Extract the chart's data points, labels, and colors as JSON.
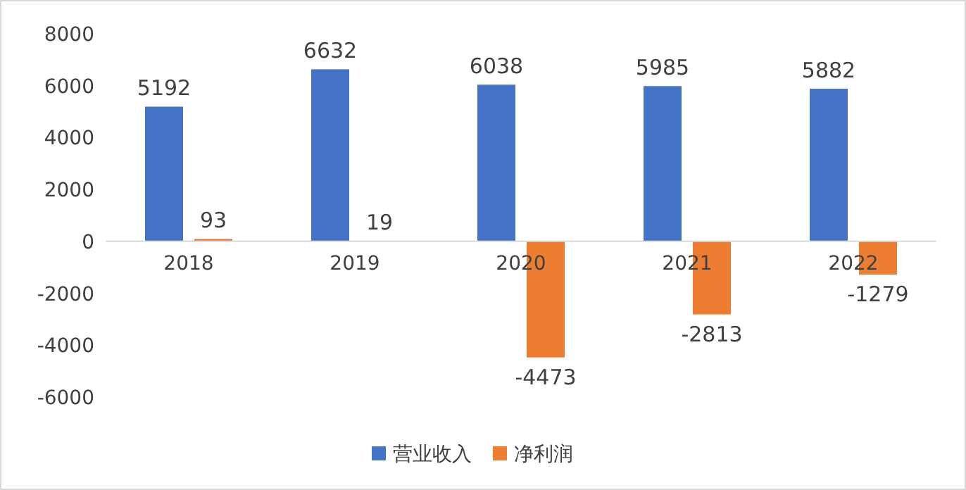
{
  "chart_data": {
    "type": "bar",
    "categories": [
      "2018",
      "2019",
      "2020",
      "2021",
      "2022"
    ],
    "series": [
      {
        "name": "营业收入",
        "color": "#4472c4",
        "values": [
          5192,
          6632,
          6038,
          5985,
          5882
        ]
      },
      {
        "name": "净利润",
        "color": "#ed7d31",
        "values": [
          93,
          19,
          -4473,
          -2813,
          -1279
        ]
      }
    ],
    "ylim": [
      -6000,
      8000
    ],
    "yticks": [
      -6000,
      -4000,
      -2000,
      0,
      2000,
      4000,
      6000,
      8000
    ],
    "data_labels": true,
    "legend": "bottom",
    "grid": false
  }
}
